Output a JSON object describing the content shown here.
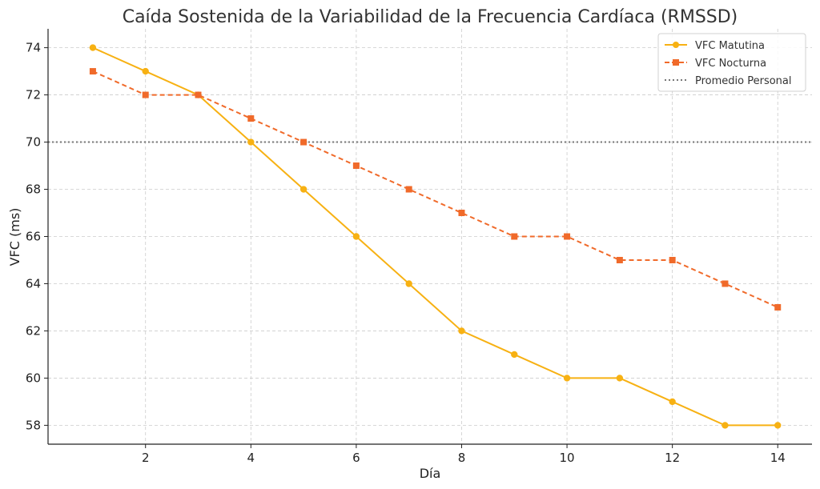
{
  "chart_data": {
    "type": "line",
    "title": "Caída Sostenida de la Variabilidad de la Frecuencia Cardíaca (RMSSD)",
    "xlabel": "Día",
    "ylabel": "VFC (ms)",
    "x": [
      1,
      2,
      3,
      4,
      5,
      6,
      7,
      8,
      9,
      10,
      11,
      12,
      13,
      14
    ],
    "xlim": [
      0.15,
      14.65
    ],
    "ylim": [
      57.2,
      74.8
    ],
    "xticks": [
      2,
      4,
      6,
      8,
      10,
      12,
      14
    ],
    "yticks": [
      58,
      60,
      62,
      64,
      66,
      68,
      70,
      72,
      74
    ],
    "grid": true,
    "legend_position": "top-right",
    "series": [
      {
        "name": "VFC Matutina",
        "values": [
          74,
          73,
          72,
          70,
          68,
          66,
          64,
          62,
          61,
          60,
          60,
          59,
          58,
          58
        ],
        "color": "#f7b113",
        "line_style": "solid",
        "marker": "circle"
      },
      {
        "name": "VFC Nocturna",
        "values": [
          73,
          72,
          72,
          71,
          70,
          69,
          68,
          67,
          66,
          66,
          65,
          65,
          64,
          63
        ],
        "color": "#f06a2a",
        "line_style": "dashed",
        "marker": "square"
      }
    ],
    "reference_lines": [
      {
        "name": "Promedio Personal",
        "y": 70,
        "color": "#777777",
        "line_style": "dotted"
      }
    ]
  }
}
